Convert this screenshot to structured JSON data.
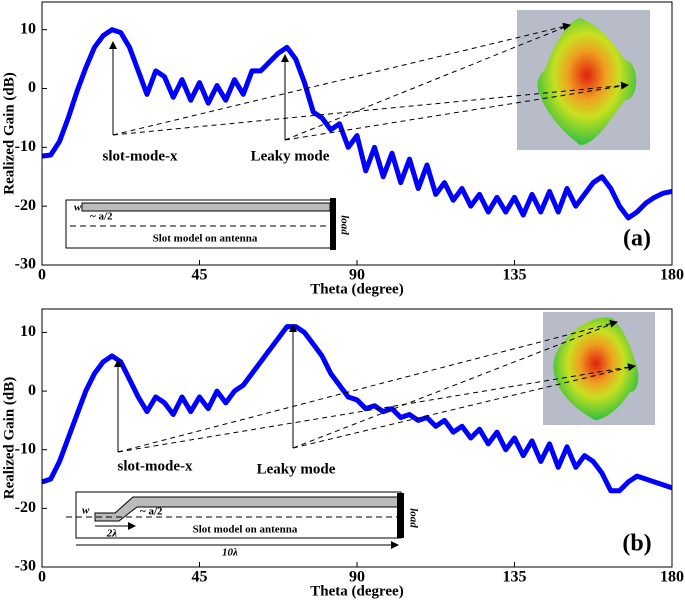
{
  "chart_data": [
    {
      "type": "line",
      "xlabel": "Theta (degree)",
      "ylabel": "Realized Gain (dB)",
      "color": "#0000ff",
      "xlim": [
        0,
        180
      ],
      "xticks": [
        0,
        45,
        90,
        135,
        180
      ],
      "ylim": [
        -30,
        14.7
      ],
      "yticks": [
        -30,
        -20,
        -10,
        0,
        10
      ],
      "x": [
        0,
        2.5,
        5,
        7.5,
        10,
        12.5,
        15,
        17.5,
        20,
        22.5,
        25,
        27.5,
        30,
        32.5,
        35,
        37.5,
        40,
        42.5,
        45,
        47.5,
        50,
        52.5,
        55,
        57.5,
        60,
        62.5,
        65,
        67.5,
        70,
        72.5,
        75,
        77.5,
        80,
        82.5,
        85,
        87.5,
        90,
        92.5,
        95,
        97.5,
        100,
        102.5,
        105,
        107.5,
        110,
        112.5,
        115,
        117.5,
        120,
        122.5,
        125,
        127.5,
        130,
        132.5,
        135,
        137.5,
        140,
        142.5,
        145,
        147.5,
        150,
        152.5,
        155,
        157.5,
        160,
        162.5,
        165,
        167.5,
        170,
        172.5,
        175,
        177.5,
        180
      ],
      "values": [
        -11.5,
        -11.3,
        -9,
        -5,
        -0.5,
        3.5,
        7,
        9,
        10,
        9.5,
        7,
        3,
        -1,
        3,
        2,
        -1.5,
        1.5,
        -2,
        1,
        -2.5,
        0.5,
        -2,
        1.5,
        -1,
        3,
        3,
        4.5,
        6,
        7,
        5,
        1,
        -4,
        -5,
        -7,
        -6,
        -10,
        -8,
        -14,
        -10,
        -15,
        -11,
        -16,
        -12,
        -17,
        -13,
        -18,
        -16,
        -19,
        -17,
        -20,
        -18,
        -21,
        -18.5,
        -21,
        -18.5,
        -21.5,
        -18,
        -21,
        -17.5,
        -21,
        -17,
        -20,
        -18,
        -16,
        -15,
        -17,
        -20,
        -22,
        -21,
        -19.5,
        -18.5,
        -17.8,
        -17.5
      ],
      "annotations": [
        "slot-mode-x",
        "Leaky mode",
        "(a)",
        "w",
        "~ a/2",
        "Slot model on antenna",
        "load"
      ]
    },
    {
      "type": "line",
      "xlabel": "Theta (degree)",
      "ylabel": "Realized Gain (dB)",
      "color": "#0000ff",
      "xlim": [
        0,
        180
      ],
      "xticks": [
        0,
        45,
        90,
        135,
        180
      ],
      "ylim": [
        -30,
        14
      ],
      "yticks": [
        -30,
        -20,
        -10,
        0,
        10
      ],
      "x": [
        0,
        2.5,
        5,
        7.5,
        10,
        12.5,
        15,
        17.5,
        20,
        22.5,
        25,
        27.5,
        30,
        32.5,
        35,
        37.5,
        40,
        42.5,
        45,
        47.5,
        50,
        52.5,
        55,
        57.5,
        60,
        62.5,
        65,
        67.5,
        70,
        72.5,
        75,
        77.5,
        80,
        82.5,
        85,
        87.5,
        90,
        92.5,
        95,
        97.5,
        100,
        102.5,
        105,
        107.5,
        110,
        112.5,
        115,
        117.5,
        120,
        122.5,
        125,
        127.5,
        130,
        132.5,
        135,
        137.5,
        140,
        142.5,
        145,
        147.5,
        150,
        152.5,
        155,
        157.5,
        160,
        162.5,
        165,
        167.5,
        170,
        172.5,
        175,
        177.5,
        180
      ],
      "values": [
        -15.5,
        -15,
        -12,
        -8,
        -4,
        0,
        3,
        5,
        6,
        5,
        2,
        -1,
        -3.5,
        -1,
        -2,
        -4,
        -1,
        -3.5,
        -1,
        -3,
        0,
        -2,
        0,
        1,
        3,
        5,
        7,
        9,
        11,
        11,
        10,
        8,
        6,
        3,
        1,
        -1,
        -1.5,
        -3,
        -2.5,
        -3.5,
        -3,
        -4.5,
        -4,
        -5,
        -4.5,
        -6,
        -5,
        -7,
        -6,
        -8,
        -6.5,
        -9,
        -7,
        -10,
        -8,
        -11,
        -8.5,
        -12,
        -9,
        -13,
        -9.5,
        -13,
        -11,
        -12,
        -14,
        -17,
        -17,
        -15.5,
        -14.5,
        -15,
        -15.5,
        -16,
        -16.5
      ],
      "annotations": [
        "slot-mode-x",
        "Leaky mode",
        "(b)",
        "w",
        "~ a/2",
        "Slot model on antenna",
        "load",
        "2λ",
        "10λ"
      ]
    }
  ]
}
